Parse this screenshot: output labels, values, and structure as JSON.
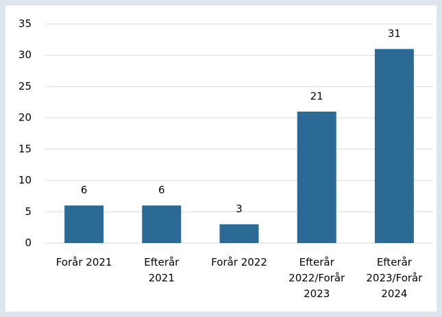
{
  "chart_data": {
    "type": "bar",
    "categories": [
      "Forår 2021",
      "Efterår 2021",
      "Forår 2022",
      "Efterår 2022/Forår 2023",
      "Efterår 2023/Forår 2024"
    ],
    "values": [
      6,
      6,
      3,
      21,
      31
    ],
    "color": "#2b6a94",
    "ylim": [
      0,
      35
    ],
    "yticks": [
      0,
      5,
      10,
      15,
      20,
      25,
      30,
      35
    ],
    "grid": true
  }
}
